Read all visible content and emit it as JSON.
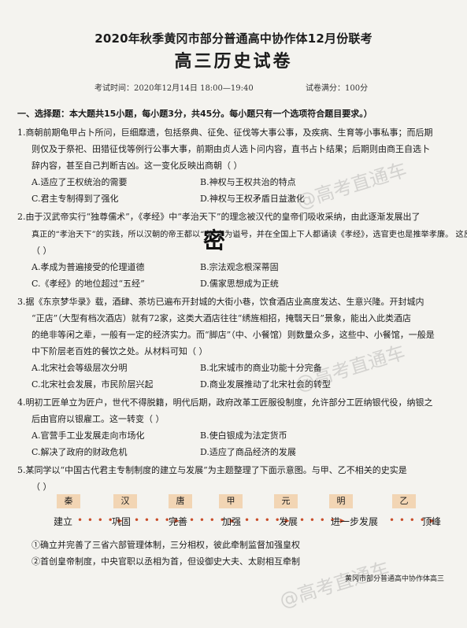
{
  "header": {
    "title": "2020年秋季黄冈市部分普通高中协作体12月份联考",
    "subtitle": "高三历史试卷",
    "exam_time": "考试时间：2020年12月14日 18:00—19:40",
    "full_score": "试卷满分：100分"
  },
  "section1": {
    "heading": "一、选择题：本大题共15小题，每小题3分，共45分。每小题只有一个选项符合题目要求。）"
  },
  "questions": [
    {
      "lines": [
        "1.商朝前期龟甲占卜所问，巨细靡遗，包括祭典、征免、征伐等大事公事，及疾病、生育等小事私事；而后期",
        "则仅及于祭祀、田猎征伐等例行公事大事，前期由贞人选卜问内容，直书占卜结果；后期则由商王自选卜",
        "辞内容，甚至自己判断吉凶。这一变化反映出商朝（      ）"
      ],
      "options": [
        "A.适应了王权统治的需要",
        "B.神权与王权共治的特点",
        "C.君主专制得到了强化",
        "D.神权与王权矛盾日益激化"
      ]
    },
    {
      "lines": [
        "2.由于汉武帝实行“独尊儒术”，《孝经》中“孝治天下”的理念被汉代的皇帝们吸收采纳，由此逐渐发展出了",
        "真正的“孝治天下”的实践，所以汉朝的帝王都以“孝”字为谥号，并在全国上下人都诵读《孝经》，选官吏也是推举孝廉。  这反映出",
        "（      ）"
      ],
      "options": [
        "A.孝成为普遍接受的伦理道德",
        "B.宗法观念根深蒂固",
        "C.《孝经》的地位超过“五经”",
        "D.儒家思想成为正统"
      ]
    },
    {
      "lines": [
        "3.据《东京梦华录》载，酒肆、茶坊已遍布开封城的大街小巷，饮食酒店业高度发达、生意兴隆。开封城内",
        "“正店”（大型有档次酒店）就有72家，这类大酒店往往“绣旌相招，掩翳天日”景象，能出入此类酒店",
        "的绝非等闲之辈，一般有一定的经济实力。而“脚店”（中、小餐馆）则数量众多，这些中、小餐馆，一般是",
        "中下阶层老百姓的餐饮之处。从材料可知（      ）"
      ],
      "options": [
        "A.北宋社会等级层次分明",
        "B.北宋城市的商业功能十分完备",
        "C.北宋社会发展，市民阶层兴起",
        "D.商业发展推动了北宋社会的转型"
      ]
    },
    {
      "lines": [
        "4.明初工匠单立为匠户，世代不得脱籍，明代后期，政府改革工匠服役制度，允许部分工匠纳银代役，纳银之",
        "后由官府以银雇工。这一转变（      ）"
      ],
      "options": [
        "A.官营手工业发展走向市场化",
        "B.使白银成为法定货币",
        "C.解决了政府的财政危机",
        "D.适应了商品经济的发展"
      ]
    },
    {
      "lines": [
        "5.某同学以“中国古代君主专制制度的建立与发展”为主题整理了下面示意图。与甲、乙不相关的史实是",
        "（      ）"
      ],
      "options": []
    }
  ],
  "timeline": {
    "periods": [
      "秦",
      "汉",
      "唐",
      "甲",
      "元",
      "明",
      "乙"
    ],
    "stages": [
      "建立",
      "巩固",
      "完善",
      "加强",
      "发展",
      "进一步发展",
      "顶峰"
    ],
    "arrow": "• • • • ▸"
  },
  "q5_options": [
    "①确立并完善了三省六部管理体制，三分相权，彼此牵制监督加强皇权",
    "②首创皇帝制度，中央官职以丞相为首，但设御史大夫、太尉相互牵制"
  ],
  "watermark": "@高考直通车",
  "stamp": "密",
  "footer": "黄冈市部分普通高中协作体高三"
}
